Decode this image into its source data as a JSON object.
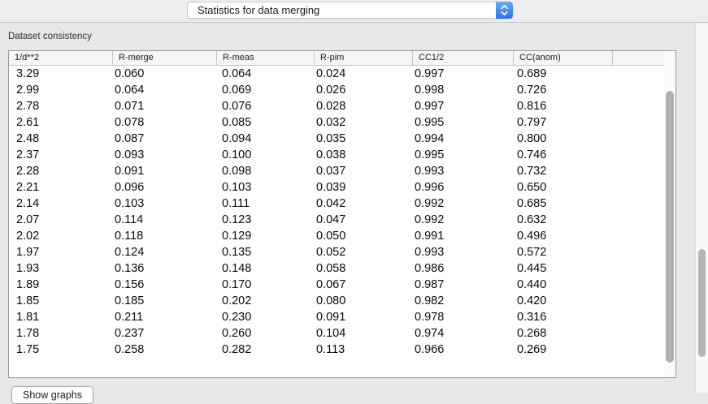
{
  "toolbar": {
    "popup": {
      "label": "Statistics for data merging"
    }
  },
  "section": {
    "label": "Dataset consistency"
  },
  "table": {
    "columns": [
      "1/d**2",
      "R-merge",
      "R-meas",
      "R-pim",
      "CC1/2",
      "CC(anom)"
    ],
    "rows": [
      [
        "3.29",
        "0.060",
        "0.064",
        "0.024",
        "0.997",
        "0.689"
      ],
      [
        "2.99",
        "0.064",
        "0.069",
        "0.026",
        "0.998",
        "0.726"
      ],
      [
        "2.78",
        "0.071",
        "0.076",
        "0.028",
        "0.997",
        "0.816"
      ],
      [
        "2.61",
        "0.078",
        "0.085",
        "0.032",
        "0.995",
        "0.797"
      ],
      [
        "2.48",
        "0.087",
        "0.094",
        "0.035",
        "0.994",
        "0.800"
      ],
      [
        "2.37",
        "0.093",
        "0.100",
        "0.038",
        "0.995",
        "0.746"
      ],
      [
        "2.28",
        "0.091",
        "0.098",
        "0.037",
        "0.993",
        "0.732"
      ],
      [
        "2.21",
        "0.096",
        "0.103",
        "0.039",
        "0.996",
        "0.650"
      ],
      [
        "2.14",
        "0.103",
        "0.111",
        "0.042",
        "0.992",
        "0.685"
      ],
      [
        "2.07",
        "0.114",
        "0.123",
        "0.047",
        "0.992",
        "0.632"
      ],
      [
        "2.02",
        "0.118",
        "0.129",
        "0.050",
        "0.991",
        "0.496"
      ],
      [
        "1.97",
        "0.124",
        "0.135",
        "0.052",
        "0.993",
        "0.572"
      ],
      [
        "1.93",
        "0.136",
        "0.148",
        "0.058",
        "0.986",
        "0.445"
      ],
      [
        "1.89",
        "0.156",
        "0.170",
        "0.067",
        "0.987",
        "0.440"
      ],
      [
        "1.85",
        "0.185",
        "0.202",
        "0.080",
        "0.982",
        "0.420"
      ],
      [
        "1.81",
        "0.211",
        "0.230",
        "0.091",
        "0.978",
        "0.316"
      ],
      [
        "1.78",
        "0.237",
        "0.260",
        "0.104",
        "0.974",
        "0.268"
      ],
      [
        "1.75",
        "0.258",
        "0.282",
        "0.113",
        "0.966",
        "0.269"
      ]
    ]
  },
  "footer": {
    "show_graphs_label": "Show graphs"
  },
  "icons": {
    "popup_stepper": "up-down-chevrons"
  },
  "colors": {
    "accent_blue": "#2a70ea",
    "scroll_thumb": "#b1b1b1"
  }
}
